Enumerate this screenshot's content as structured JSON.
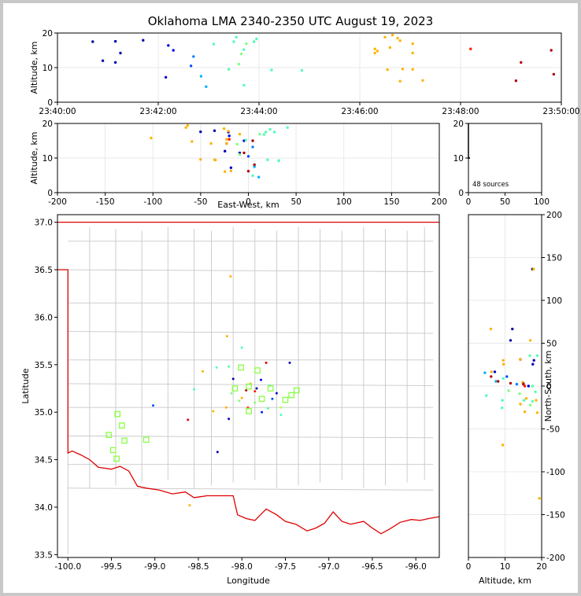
{
  "title": "Oklahoma LMA 2340-2350 UTC August 19, 2023",
  "colors": {
    "border": "#dd0000",
    "county": "#c8c8c8",
    "grid": "#e8e8e8",
    "stations": "#88ff44"
  },
  "chart_data": [
    {
      "id": "time_altitude",
      "type": "scatter",
      "xlabel": "",
      "ylabel": "Altitude, km",
      "xticks": [
        "23:40:00",
        "23:42:00",
        "23:44:00",
        "23:46:00",
        "23:48:00",
        "23:50:00"
      ],
      "xlim_minutes": [
        0,
        10
      ],
      "ylim": [
        0,
        20
      ],
      "yticks": [
        0,
        10,
        20
      ],
      "points_t_alt": [
        [
          0.7,
          17.5,
          0.02
        ],
        [
          0.9,
          12,
          0.05
        ],
        [
          1.15,
          17.6,
          0.04
        ],
        [
          1.15,
          11.5,
          0.04
        ],
        [
          1.25,
          14.2,
          0.06
        ],
        [
          1.7,
          17.9,
          0.05
        ],
        [
          2.15,
          7.2,
          0.08
        ],
        [
          2.2,
          16.4,
          0.1
        ],
        [
          2.3,
          15,
          0.1
        ],
        [
          2.65,
          10.5,
          0.2
        ],
        [
          2.7,
          13.2,
          0.25
        ],
        [
          2.85,
          7.5,
          0.3
        ],
        [
          2.95,
          4.5,
          0.3
        ],
        [
          3.1,
          16.8,
          0.45
        ],
        [
          3.4,
          9.5,
          0.45
        ],
        [
          3.5,
          17.5,
          0.45
        ],
        [
          3.55,
          18.8,
          0.45
        ],
        [
          3.6,
          11,
          0.5
        ],
        [
          3.65,
          14,
          0.5
        ],
        [
          3.7,
          15.2,
          0.45
        ],
        [
          3.7,
          4.9,
          0.45
        ],
        [
          3.75,
          16.9,
          0.5
        ],
        [
          3.9,
          17.5,
          0.45
        ],
        [
          3.95,
          18.3,
          0.45
        ],
        [
          4.25,
          9.3,
          0.45
        ],
        [
          4.85,
          9.2,
          0.45
        ],
        [
          6.3,
          15.4,
          0.7
        ],
        [
          6.3,
          14.2,
          0.7
        ],
        [
          6.35,
          14.8,
          0.7
        ],
        [
          6.5,
          18.8,
          0.7
        ],
        [
          6.55,
          9.4,
          0.7
        ],
        [
          6.6,
          15.8,
          0.7
        ],
        [
          6.65,
          19.4,
          0.7
        ],
        [
          6.75,
          18.5,
          0.7
        ],
        [
          6.8,
          17.8,
          0.7
        ],
        [
          6.8,
          6.1,
          0.7
        ],
        [
          6.85,
          9.6,
          0.7
        ],
        [
          7.05,
          16.9,
          0.7
        ],
        [
          7.05,
          14.2,
          0.7
        ],
        [
          7.05,
          9.5,
          0.7
        ],
        [
          7.25,
          6.3,
          0.7
        ],
        [
          8.2,
          15.4,
          0.85
        ],
        [
          9.2,
          11.5,
          0.95
        ],
        [
          9.1,
          6.2,
          0.95
        ],
        [
          9.8,
          15,
          0.95
        ],
        [
          9.85,
          8.1,
          0.95
        ]
      ]
    },
    {
      "id": "ew_altitude",
      "type": "scatter",
      "xlabel": "East-West, km",
      "ylabel": "Altitude, km",
      "xlim": [
        -200,
        200
      ],
      "xticks": [
        -200,
        -150,
        -100,
        -50,
        0,
        50,
        100,
        150,
        200
      ],
      "ylim": [
        0,
        20
      ],
      "yticks": [
        0,
        10,
        20
      ]
    },
    {
      "id": "histogram",
      "type": "bar",
      "xlim": [
        0,
        100
      ],
      "xticks": [
        0,
        50,
        100
      ],
      "ylim": [
        0,
        20
      ],
      "yticks": [
        0,
        10,
        20
      ],
      "label": "48 sources",
      "sources": 48
    },
    {
      "id": "map",
      "type": "scatter",
      "xlabel": "Longitude",
      "ylabel": "Latitude",
      "xlim": [
        -100.12,
        -95.73
      ],
      "ylim": [
        33.47,
        37.08
      ],
      "xticks": [
        -100.0,
        -99.5,
        -99.0,
        -98.5,
        -98.0,
        -97.5,
        -97.0,
        -96.5,
        -96.0
      ],
      "yticks": [
        33.5,
        34.0,
        34.5,
        35.0,
        35.5,
        36.0,
        36.5,
        37.0
      ],
      "points_lon_lat": [
        [
          -98.13,
          36.43,
          0.7
        ],
        [
          -98.17,
          35.8,
          0.7
        ],
        [
          -98.45,
          35.43,
          0.7
        ],
        [
          -98.0,
          35.68,
          0.45
        ],
        [
          -98.15,
          35.48,
          0.45
        ],
        [
          -98.29,
          35.47,
          0.45
        ],
        [
          -98.1,
          35.35,
          0.05
        ],
        [
          -98.12,
          35.2,
          0.5
        ],
        [
          -97.95,
          35.23,
          0.95
        ],
        [
          -97.9,
          35.3,
          0.7
        ],
        [
          -97.85,
          35.22,
          0.85
        ],
        [
          -97.83,
          35.25,
          0.02
        ],
        [
          -97.78,
          35.34,
          0.1
        ],
        [
          -97.72,
          35.52,
          0.9
        ],
        [
          -97.68,
          35.28,
          0.45
        ],
        [
          -97.6,
          35.2,
          0.08
        ],
        [
          -97.45,
          35.52,
          0.06
        ],
        [
          -98.0,
          35.15,
          0.7
        ],
        [
          -98.03,
          35.12,
          0.5
        ],
        [
          -97.93,
          35.05,
          0.8
        ],
        [
          -97.85,
          35.1,
          0.5
        ],
        [
          -97.77,
          35.0,
          0.15
        ],
        [
          -97.7,
          35.04,
          0.45
        ],
        [
          -97.65,
          35.14,
          0.2
        ],
        [
          -97.55,
          35.05,
          0.55
        ],
        [
          -97.55,
          34.97,
          0.45
        ],
        [
          -98.15,
          34.93,
          0.05
        ],
        [
          -98.33,
          35.01,
          0.7
        ],
        [
          -98.55,
          35.24,
          0.45
        ],
        [
          -98.62,
          34.92,
          0.9
        ],
        [
          -98.28,
          34.58,
          0.05
        ],
        [
          -99.02,
          35.07,
          0.2
        ],
        [
          -98.6,
          34.02,
          0.7
        ],
        [
          -98.18,
          35.05,
          0.7
        ]
      ],
      "stations_lon_lat": [
        [
          -99.53,
          34.76
        ],
        [
          -99.48,
          34.6
        ],
        [
          -99.44,
          34.51
        ],
        [
          -99.43,
          34.98
        ],
        [
          -99.38,
          34.86
        ],
        [
          -99.35,
          34.7
        ],
        [
          -99.1,
          34.71
        ],
        [
          -98.08,
          35.25
        ],
        [
          -98.01,
          35.47
        ],
        [
          -97.92,
          35.27
        ],
        [
          -97.92,
          35.01
        ],
        [
          -97.82,
          35.44
        ],
        [
          -97.77,
          35.14
        ],
        [
          -97.67,
          35.25
        ],
        [
          -97.5,
          35.13
        ],
        [
          -97.43,
          35.18
        ],
        [
          -97.37,
          35.23
        ]
      ]
    },
    {
      "id": "alt_ns",
      "type": "scatter",
      "xlabel": "Altitude, km",
      "ylabel": "North-South, km",
      "xlim": [
        0,
        20
      ],
      "xticks": [
        0,
        10,
        20
      ],
      "ylim": [
        -200,
        200
      ],
      "yticks": [
        -200,
        -150,
        -100,
        -50,
        0,
        50,
        100,
        150,
        200
      ]
    }
  ]
}
